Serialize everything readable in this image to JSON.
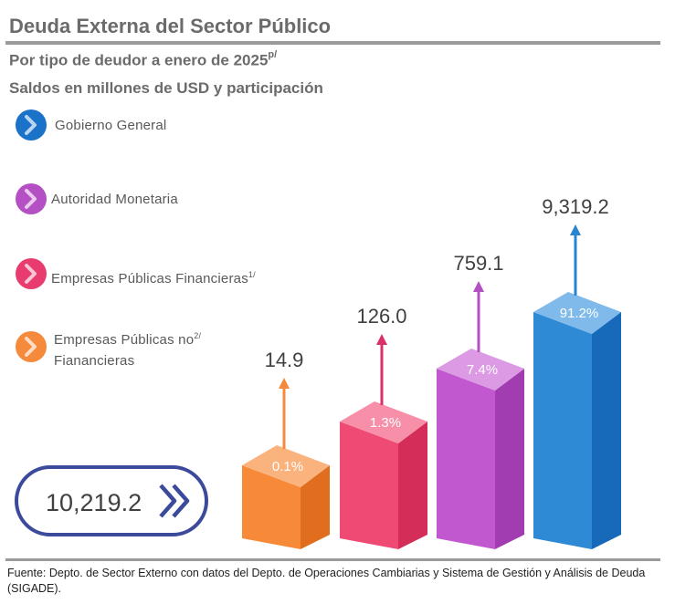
{
  "title": "Deuda Externa del Sector Público",
  "subtitle1": "Por tipo de deudor  a enero de 2025",
  "subtitle1_sup": "p/",
  "subtitle2": "Saldos en millones de USD y participación",
  "total": "10,219.2",
  "footer": "Fuente: Depto. de Sector Externo con datos del Depto. de Operaciones Cambiarias y Sistema de Gestión y Análisis de Deuda (SIGADE).",
  "legend": [
    {
      "label": "Gobierno General",
      "sup": "",
      "color": "#1a73c9",
      "icon": "chevron-right-icon"
    },
    {
      "label": "Autoridad Monetaria",
      "sup": "",
      "color": "#b44fc4",
      "icon": "chevron-right-icon"
    },
    {
      "label": "Empresas Públicas  Financieras",
      "sup": "1/",
      "color": "#e83c6e",
      "icon": "chevron-right-icon"
    },
    {
      "label": "Empresas Públicas  no",
      "label2": "Fianancieras",
      "sup": "2/",
      "color": "#f58a3c",
      "icon": "chevron-right-icon"
    }
  ],
  "chart_data": {
    "type": "bar",
    "categories": [
      "Empresas Públicas no Fianancieras",
      "Empresas Públicas Financieras",
      "Autoridad Monetaria",
      "Gobierno General"
    ],
    "values": [
      14.9,
      126.0,
      759.1,
      9319.2
    ],
    "value_labels": [
      "14.9",
      "126.0",
      "759.1",
      "9,319.2"
    ],
    "share_labels": [
      "0.1%",
      "1.3%",
      "7.4%",
      "91.2%"
    ],
    "colors": [
      {
        "front": "#f78a38",
        "side": "#e06e1e",
        "top": "#fbb37e",
        "arrow": "#f58a3c"
      },
      {
        "front": "#ef4a74",
        "side": "#d42d59",
        "top": "#f78fa9",
        "arrow": "#d9326a"
      },
      {
        "front": "#c158cf",
        "side": "#a23db1",
        "top": "#db9ae3",
        "arrow": "#b44fc4"
      },
      {
        "front": "#2f8ad6",
        "side": "#1769b9",
        "top": "#7fbaea",
        "arrow": "#2a85cf"
      }
    ]
  }
}
